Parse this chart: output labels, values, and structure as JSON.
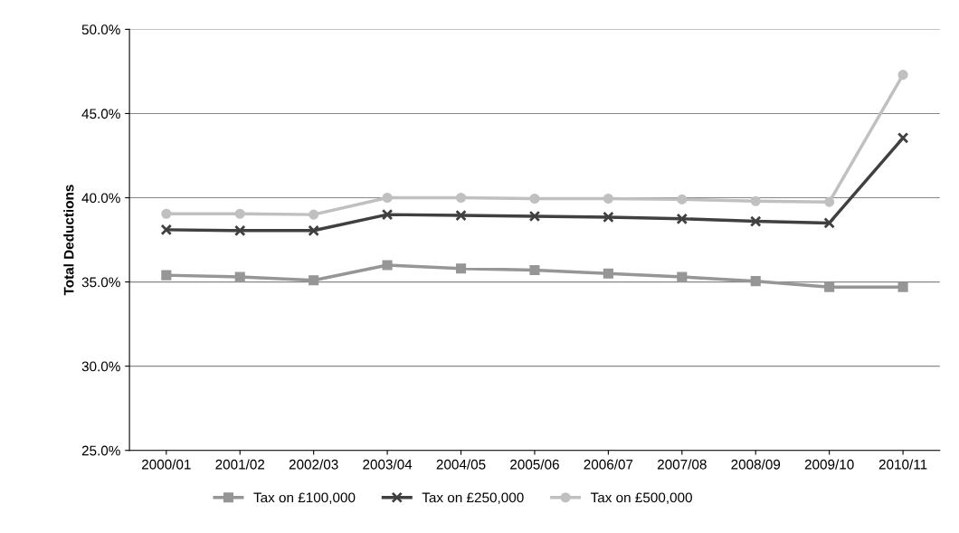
{
  "chart_data": {
    "type": "line",
    "ylabel": "Total Deductions",
    "categories": [
      "2000/01",
      "2001/02",
      "2002/03",
      "2003/04",
      "2004/05",
      "2005/06",
      "2006/07",
      "2007/08",
      "2008/09",
      "2009/10",
      "2010/11"
    ],
    "series": [
      {
        "name": "Tax on £100,000",
        "color": "#969696",
        "marker": "square",
        "values": [
          35.4,
          35.3,
          35.1,
          36.0,
          35.8,
          35.7,
          35.5,
          35.3,
          35.05,
          34.7,
          34.7
        ]
      },
      {
        "name": "Tax on £250,000",
        "color": "#404040",
        "marker": "cross",
        "values": [
          38.1,
          38.05,
          38.05,
          39.0,
          38.95,
          38.9,
          38.85,
          38.75,
          38.6,
          38.5,
          43.55
        ]
      },
      {
        "name": "Tax on £500,000",
        "color": "#c0c0c0",
        "marker": "circle",
        "values": [
          39.05,
          39.05,
          39.0,
          40.0,
          40.0,
          39.95,
          39.95,
          39.9,
          39.8,
          39.75,
          47.3
        ]
      }
    ],
    "ylim": [
      25,
      50
    ],
    "yticks": [
      {
        "value": 25,
        "label": "25.0%"
      },
      {
        "value": 30,
        "label": "30.0%"
      },
      {
        "value": 35,
        "label": "35.0%"
      },
      {
        "value": 40,
        "label": "40.0%"
      },
      {
        "value": 45,
        "label": "45.0%"
      },
      {
        "value": 50,
        "label": "50.0%"
      }
    ],
    "grid": "y",
    "legend": "bottom",
    "line_style": "solid"
  }
}
